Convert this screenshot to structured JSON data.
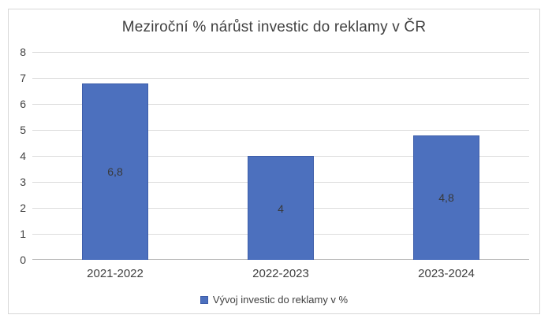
{
  "chart_data": {
    "type": "bar",
    "title": "Meziroční % nárůst investic do reklamy v ČR",
    "categories": [
      "2021-2022",
      "2022-2023",
      "2023-2024"
    ],
    "series": [
      {
        "name": "Vývoj investic do reklamy v %",
        "values": [
          6.8,
          4,
          4.8
        ],
        "value_labels": [
          "6,8",
          "4",
          "4,8"
        ]
      }
    ],
    "ylabel": "",
    "xlabel": "",
    "ylim": [
      0,
      8
    ],
    "ytick_step": 1,
    "yticks": [
      0,
      1,
      2,
      3,
      4,
      5,
      6,
      7,
      8
    ],
    "grid": true,
    "legend_position": "bottom",
    "data_label_position": "center",
    "colors": {
      "bar_fill": "#4C70BE",
      "bar_border": "#3D5DA9",
      "gridline": "#DCDCDC",
      "axis_line": "#BDBDBD",
      "text": "#404040",
      "frame_border": "#D7D7D7",
      "background": "#FFFFFF"
    }
  }
}
